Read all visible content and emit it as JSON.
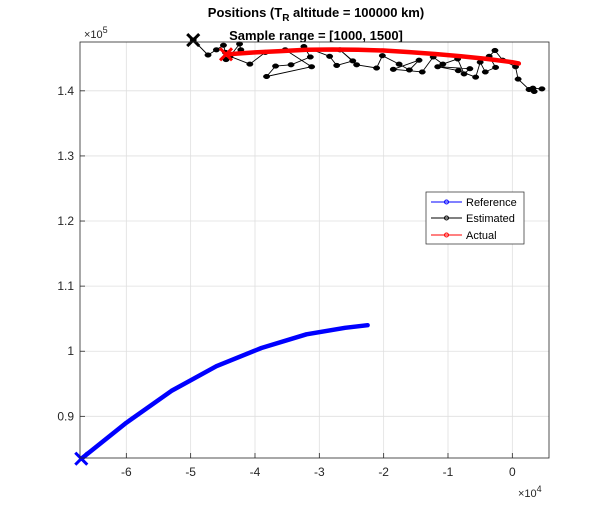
{
  "chart_data": {
    "type": "line",
    "title_line1_prefix": "Positions (T",
    "title_line1_sub": "R",
    "title_line1_suffix": " altitude = 100000 km)",
    "title_line2": "Sample range = [1000, 1500]",
    "xlabel": "",
    "ylabel": "",
    "x_exponent_base": "×10",
    "x_exponent_power": "4",
    "y_exponent_base": "×10",
    "y_exponent_power": "5",
    "xlim": [
      -67200,
      5700
    ],
    "ylim": [
      83600,
      147500
    ],
    "grid": true,
    "legend_position": "right",
    "x_ticks": [
      -6,
      -5,
      -4,
      -3,
      -2,
      -1,
      0
    ],
    "x_tick_labels": [
      "-6",
      "-5",
      "-4",
      "-3",
      "-2",
      "-1",
      "0"
    ],
    "y_ticks": [
      0.9,
      1.0,
      1.1,
      1.2,
      1.3,
      1.4
    ],
    "y_tick_labels": [
      "0.9",
      "1",
      "1.1",
      "1.2",
      "1.3",
      "1.4"
    ],
    "series": [
      {
        "name": "Reference",
        "color": "#0000ff",
        "x": [
          -67000,
          -60000,
          -53000,
          -46000,
          -39000,
          -32000,
          -26000,
          -22500
        ],
        "y": [
          83500,
          89000,
          93900,
          97700,
          100500,
          102600,
          103600,
          104000
        ],
        "start_marker": "x"
      },
      {
        "name": "Estimated",
        "color": "#000000",
        "x": [
          -49600,
          -47300,
          -46000,
          -44900,
          -44600,
          -44500,
          -42200,
          -42400,
          -43900,
          -40800,
          -38400,
          -35300,
          -31200,
          -38200,
          -36800,
          -34400,
          -31400,
          -32400,
          -28400,
          -27300,
          -24800,
          -26800,
          -24200,
          -21100,
          -20200,
          -17600,
          -16000,
          -14500,
          -18500,
          -14000,
          -12300,
          -10800,
          -8500,
          -7500,
          -6600,
          -11600,
          -8400,
          -5700,
          -5000,
          -4200,
          -2600,
          -3600,
          -2700,
          -1500,
          500,
          900,
          2600,
          3400,
          3200,
          4600
        ],
        "y": [
          147800,
          145500,
          146300,
          147000,
          145900,
          144800,
          146300,
          147200,
          145300,
          144100,
          145900,
          146300,
          143700,
          142200,
          143800,
          144000,
          145200,
          146800,
          145300,
          143900,
          144600,
          146300,
          144000,
          143500,
          145400,
          144100,
          143200,
          144700,
          143300,
          142900,
          145200,
          144100,
          144900,
          142600,
          143400,
          143700,
          143100,
          142100,
          144400,
          142900,
          143600,
          145300,
          146200,
          144700,
          143700,
          141800,
          140200,
          139900,
          140400,
          140300
        ],
        "start_marker": "x"
      },
      {
        "name": "Actual",
        "color": "#ff0000",
        "x": [
          -44500,
          -40000,
          -36000,
          -32000,
          -28000,
          -24000,
          -20000,
          -16000,
          -12000,
          -8000,
          -4000,
          0,
          1000
        ],
        "y": [
          145600,
          145900,
          146100,
          146300,
          146350,
          146300,
          146200,
          145950,
          145650,
          145300,
          144900,
          144400,
          144200
        ],
        "start_marker": "x"
      }
    ]
  }
}
